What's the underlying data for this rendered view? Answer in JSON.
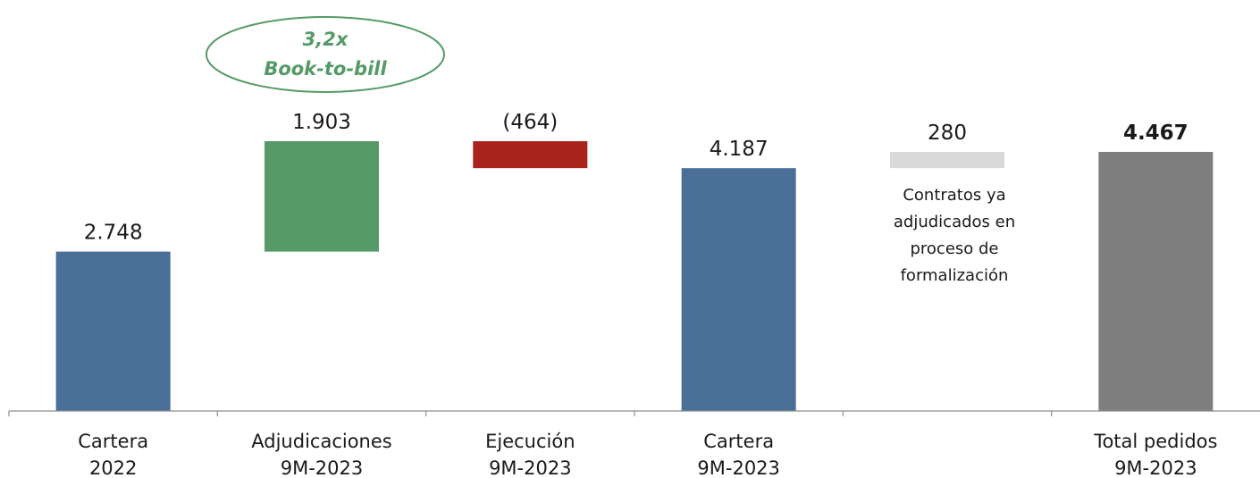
{
  "chart_data": {
    "type": "bar",
    "subtype": "waterfall",
    "categories": [
      [
        "Cartera",
        "2022"
      ],
      [
        "Adjudicaciones",
        "9M-2023"
      ],
      [
        "Ejecución",
        "9M-2023"
      ],
      [
        "Cartera",
        "9M-2023"
      ],
      [],
      [
        "Total pedidos",
        "9M-2023"
      ]
    ],
    "bars": [
      {
        "kind": "total",
        "base": 0,
        "value": 2748,
        "label": "2.748",
        "color": "#4a6f98",
        "bold": false
      },
      {
        "kind": "increase",
        "base": 2748,
        "value": 1903,
        "label": "1.903",
        "color": "#559a67",
        "bold": false
      },
      {
        "kind": "decrease",
        "base": 4187,
        "value": 464,
        "label": "(464)",
        "color": "#a8231c",
        "bold": false
      },
      {
        "kind": "total",
        "base": 0,
        "value": 4187,
        "label": "4.187",
        "color": "#4a6f98",
        "bold": false
      },
      {
        "kind": "increase",
        "base": 4187,
        "value": 280,
        "label": "280",
        "color": "#d9d9d9",
        "bold": false
      },
      {
        "kind": "total",
        "base": 0,
        "value": 4467,
        "label": "4.467",
        "color": "#7f7f7f",
        "bold": true
      }
    ],
    "annotations": {
      "book_to_bill": {
        "line1": "3,2x",
        "line2": "Book-to-bill",
        "color": "#559a67"
      },
      "pending_note": [
        "Contratos ya",
        "adjudicados en",
        "proceso de",
        "formalización"
      ]
    },
    "ylim": [
      0,
      6100
    ],
    "axis_color": "#8c8c8c"
  }
}
